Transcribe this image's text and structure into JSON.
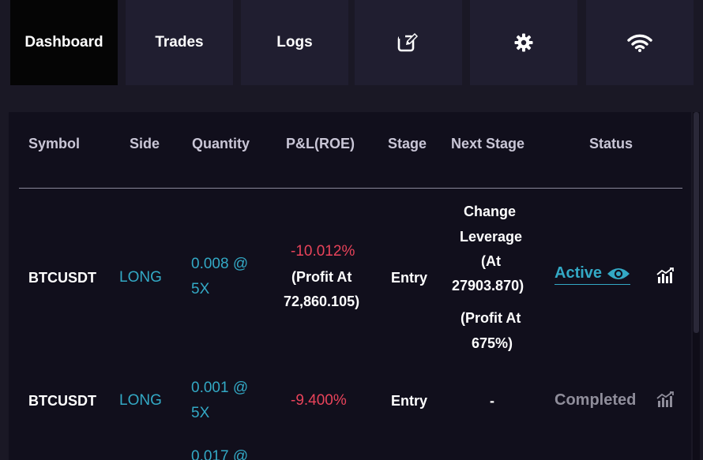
{
  "nav": {
    "tabs": [
      {
        "label": "Dashboard",
        "active": true
      },
      {
        "label": "Trades",
        "active": false
      },
      {
        "label": "Logs",
        "active": false
      }
    ],
    "icons": [
      "edit-icon",
      "gear-icon",
      "wifi-icon"
    ]
  },
  "table": {
    "headers": [
      "Symbol",
      "Side",
      "Quantity",
      "P&L(ROE)",
      "Stage",
      "Next Stage",
      "Status"
    ],
    "rows": [
      {
        "symbol": "BTCUSDT",
        "side": "LONG",
        "quantity_line1": "0.008 @",
        "quantity_line2": "5X",
        "pnl": "-10.012%",
        "pnl_profit_line1": "(Profit At",
        "pnl_profit_line2": "72,860.105)",
        "stage": "Entry",
        "next_stage_line1": "Change",
        "next_stage_line2": "Leverage",
        "next_stage_line3": "(At",
        "next_stage_line4": "27903.870)",
        "next_stage_line5": "(Profit At",
        "next_stage_line6": "675%)",
        "status": "Active",
        "status_icon": "eye-icon",
        "action_icon": "chart-icon"
      },
      {
        "symbol": "BTCUSDT",
        "side": "LONG",
        "quantity_line1": "0.001 @",
        "quantity_line2": "5X",
        "pnl": "-9.400%",
        "stage": "Entry",
        "next_stage": "-",
        "status": "Completed",
        "action_icon": "chart-icon"
      },
      {
        "quantity_line1": "0.017 @"
      }
    ]
  },
  "colors": {
    "background": "#1a1825",
    "tab": "#201e30",
    "active_tab": "#050505",
    "panel": "#110f1c",
    "accent": "#33a9c5",
    "loss": "#e8435a",
    "muted": "#8f8d9a"
  }
}
